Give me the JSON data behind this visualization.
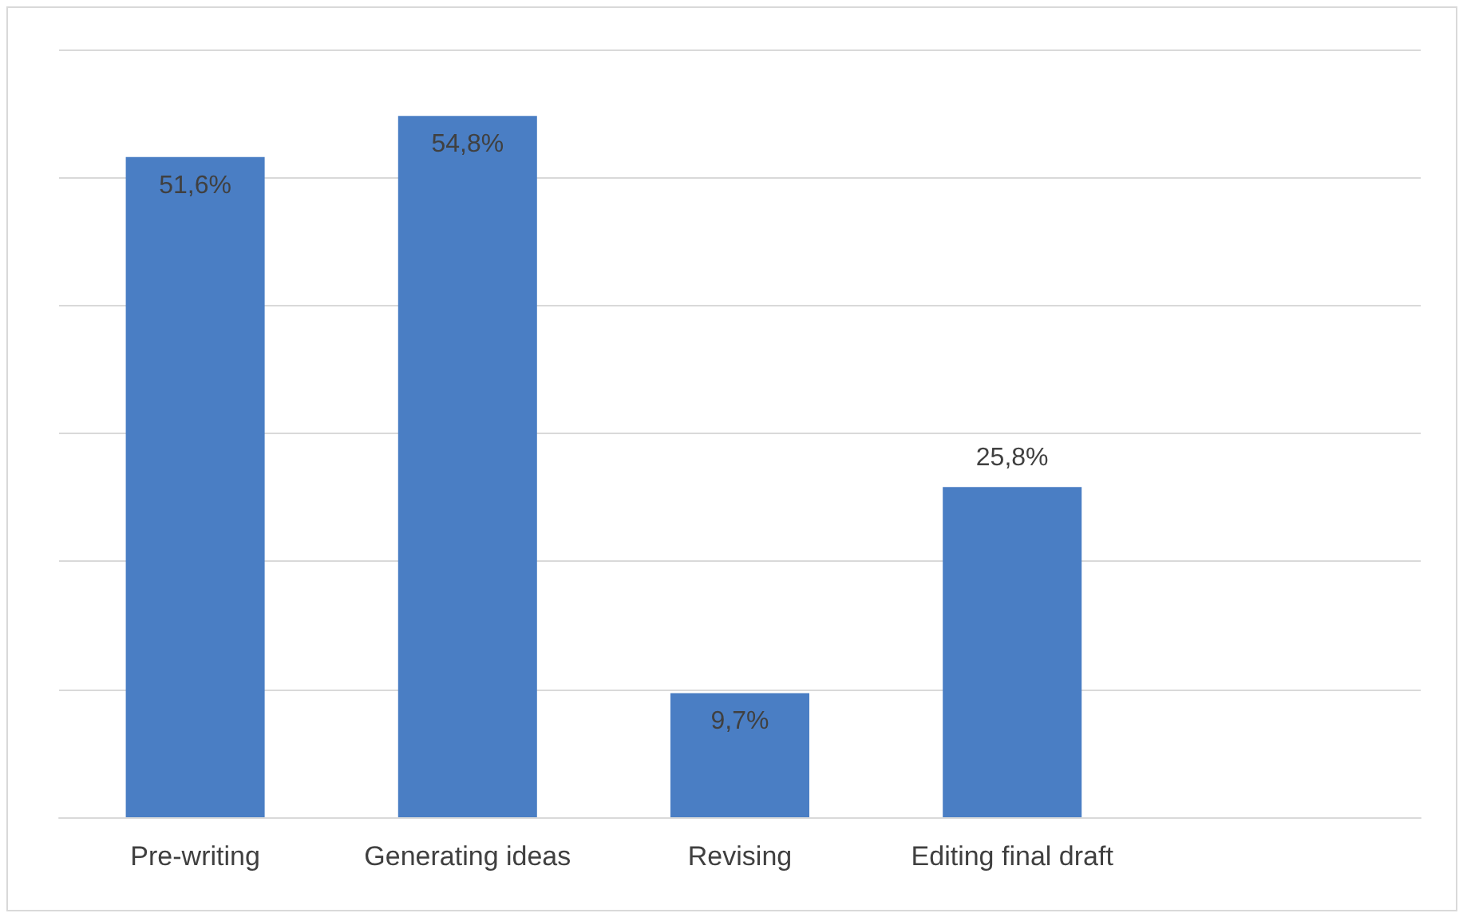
{
  "chart_data": {
    "type": "bar",
    "categories": [
      "Pre-writing",
      "Generating ideas",
      "Revising",
      "Editing final draft",
      null
    ],
    "values": [
      51.6,
      54.8,
      9.7,
      25.8,
      null
    ],
    "value_labels": [
      "51,6%",
      "54,8%",
      "9,7%",
      "25,8%",
      null
    ],
    "color": "#4a7ec4",
    "ylim": [
      0,
      60
    ],
    "yticks": [
      {
        "value": 0,
        "label": null
      },
      {
        "value": 10,
        "label": null
      },
      {
        "value": 20,
        "label": null
      },
      {
        "value": 30,
        "label": null
      },
      {
        "value": 40,
        "label": null
      },
      {
        "value": 50,
        "label": null
      },
      {
        "value": 60,
        "label": null
      }
    ],
    "grid": "y",
    "tick_labels": "x"
  }
}
